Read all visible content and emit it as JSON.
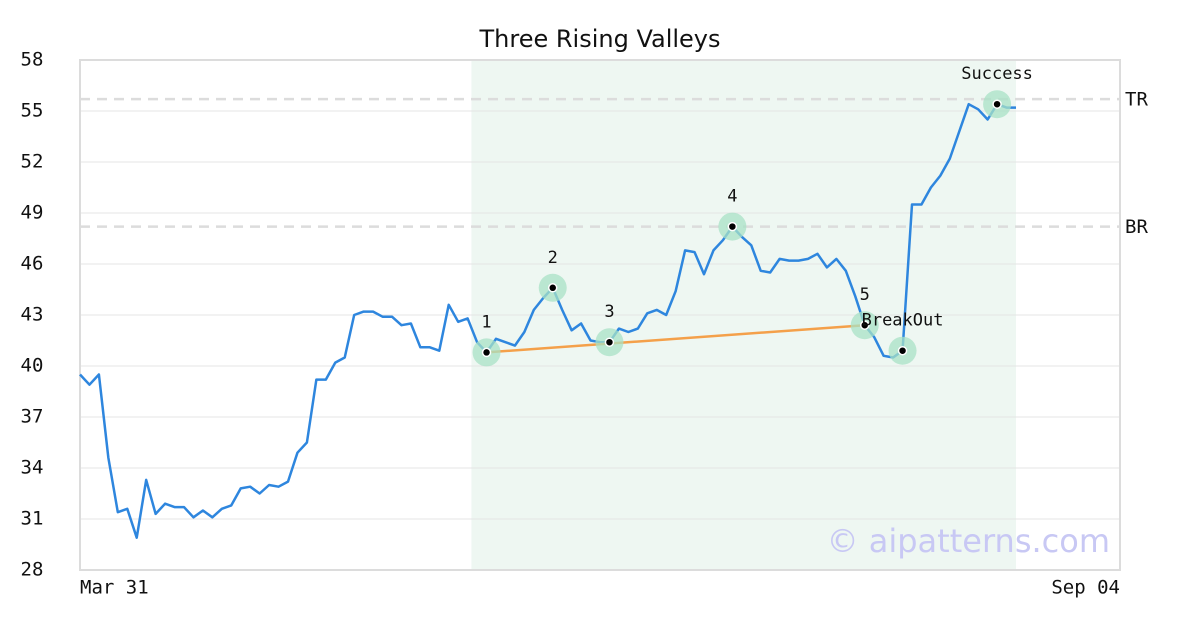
{
  "chart_data": {
    "type": "line",
    "title": "Three Rising Valleys",
    "x": [
      0,
      1,
      2,
      3,
      4,
      5,
      6,
      7,
      8,
      9,
      10,
      11,
      12,
      13,
      14,
      15,
      16,
      17,
      18,
      19,
      20,
      21,
      22,
      23,
      24,
      25,
      26,
      27,
      28,
      29,
      30,
      31,
      32,
      33,
      34,
      35,
      36,
      37,
      38,
      39,
      40,
      41,
      42,
      43,
      44,
      45,
      46,
      47,
      48,
      49,
      50,
      51,
      52,
      53,
      54,
      55,
      56,
      57,
      58,
      59,
      60,
      61,
      62,
      63,
      64,
      65,
      66,
      67,
      68,
      69,
      70,
      71,
      72,
      73,
      74,
      75,
      76,
      77,
      78,
      79,
      80,
      81,
      82,
      83,
      84,
      85,
      86,
      87,
      88,
      89,
      90,
      91,
      92,
      93,
      94,
      95,
      96,
      97,
      98,
      99
    ],
    "values": [
      39.5,
      38.9,
      39.5,
      34.6,
      31.4,
      31.6,
      29.9,
      33.3,
      31.3,
      31.9,
      31.7,
      31.7,
      31.1,
      31.5,
      31.1,
      31.6,
      31.8,
      32.8,
      32.9,
      32.5,
      33.0,
      32.9,
      33.2,
      34.9,
      35.5,
      39.2,
      39.2,
      40.2,
      40.5,
      43.0,
      43.2,
      43.2,
      42.9,
      42.9,
      42.4,
      42.5,
      41.1,
      41.1,
      40.9,
      43.6,
      42.6,
      42.8,
      41.4,
      40.8,
      41.6,
      41.4,
      41.2,
      42.0,
      43.3,
      44.0,
      44.6,
      43.3,
      42.1,
      42.5,
      41.5,
      41.4,
      41.4,
      42.2,
      42.0,
      42.2,
      43.1,
      43.3,
      43.0,
      44.4,
      46.8,
      46.7,
      45.4,
      46.8,
      47.4,
      48.2,
      47.6,
      47.1,
      45.6,
      45.5,
      46.3,
      46.2,
      46.2,
      46.3,
      46.6,
      45.8,
      46.3,
      45.6,
      44.1,
      42.4,
      41.7,
      40.6,
      40.5,
      40.9,
      49.5,
      49.5,
      50.5,
      51.2,
      52.2,
      53.8,
      55.4,
      55.1,
      54.5,
      55.4,
      55.2,
      55.2
    ],
    "color": "#2e86de",
    "xlim": [
      0,
      110
    ],
    "xticks": [
      {
        "value": 0,
        "label": "Mar 31"
      },
      {
        "value": 110,
        "label": "Sep 04"
      }
    ],
    "ylim": [
      28,
      58
    ],
    "yticks": [
      28,
      31,
      34,
      37,
      40,
      43,
      46,
      49,
      52,
      55,
      58
    ],
    "grid": true,
    "highlight": {
      "x": [
        41.4,
        99
      ],
      "color": "#eef7f2"
    },
    "levels": [
      {
        "label": "TR",
        "value": 55.7
      },
      {
        "label": "BR",
        "value": 48.2
      }
    ],
    "trendline": {
      "color": "#f4a04a",
      "x": [
        43,
        83
      ],
      "y": [
        40.8,
        42.4
      ]
    },
    "annotations": [
      {
        "label": "1",
        "x": 43,
        "y": 40.8
      },
      {
        "label": "2",
        "x": 50,
        "y": 44.6
      },
      {
        "label": "3",
        "x": 56,
        "y": 41.4
      },
      {
        "label": "4",
        "x": 69,
        "y": 48.2
      },
      {
        "label": "5",
        "x": 83,
        "y": 42.4
      },
      {
        "label": "BreakOut",
        "x": 87,
        "y": 40.9
      },
      {
        "label": "Success",
        "x": 97,
        "y": 55.4
      }
    ],
    "watermark": "© aipatterns.com"
  }
}
